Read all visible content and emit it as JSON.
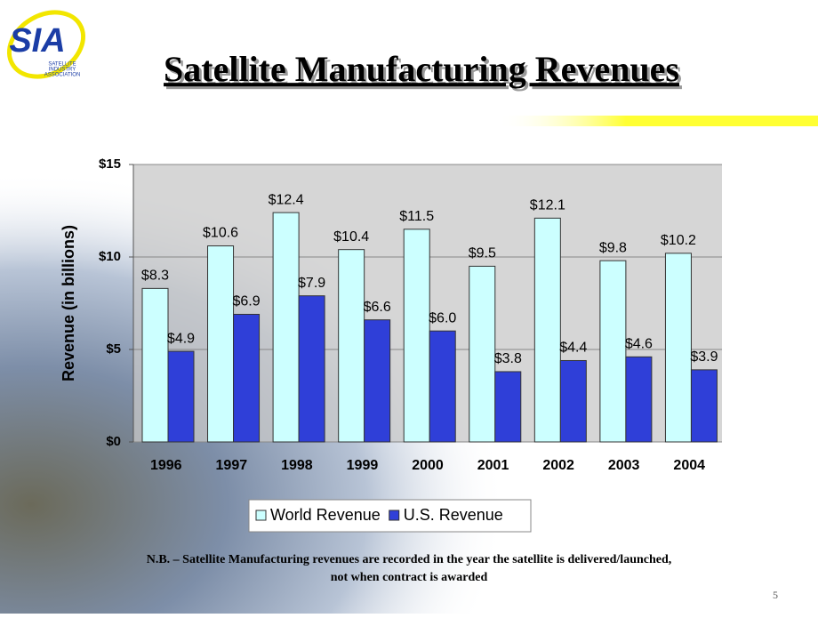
{
  "slide": {
    "logo": "SIA",
    "logo_lines": [
      "SATELLITE",
      "INDUSTRY",
      "ASSOCIATION"
    ],
    "note": [
      "N.B. – Satellite Manufacturing revenues are recorded in the year the satellite is delivered/launched,",
      "not when contract is awarded"
    ],
    "page_number": "5"
  },
  "chart_data": {
    "type": "bar",
    "title": "Satellite Manufacturing Revenues",
    "y_label": "Revenue (in billions)",
    "categories": [
      "1996",
      "1997",
      "1998",
      "1999",
      "2000",
      "2001",
      "2002",
      "2003",
      "2004"
    ],
    "series": [
      {
        "name": "World Revenue",
        "color": "#ccffff",
        "values": [
          8.3,
          10.6,
          12.4,
          10.4,
          11.5,
          9.5,
          12.1,
          9.8,
          10.2
        ],
        "value_labels": [
          "$8.3",
          "$10.6",
          "$12.4",
          "$10.4",
          "$11.5",
          "$9.5",
          "$12.1",
          "$9.8",
          "$10.2"
        ]
      },
      {
        "name": "U.S. Revenue",
        "color": "#2f3fd8",
        "values": [
          4.9,
          6.9,
          7.9,
          6.6,
          6.0,
          3.8,
          4.4,
          4.6,
          3.9
        ],
        "value_labels": [
          "$4.9",
          "$6.9",
          "$7.9",
          "$6.6",
          "$6.0",
          "$3.8",
          "$4.4",
          "$4.6",
          "$3.9"
        ]
      }
    ],
    "ylim": [
      0,
      15
    ],
    "yticks": [
      {
        "value": 0,
        "label": "$0"
      },
      {
        "value": 5,
        "label": "$5"
      },
      {
        "value": 10,
        "label": "$10"
      },
      {
        "value": 15,
        "label": "$15"
      }
    ],
    "grid": true,
    "legend": "bottom"
  }
}
